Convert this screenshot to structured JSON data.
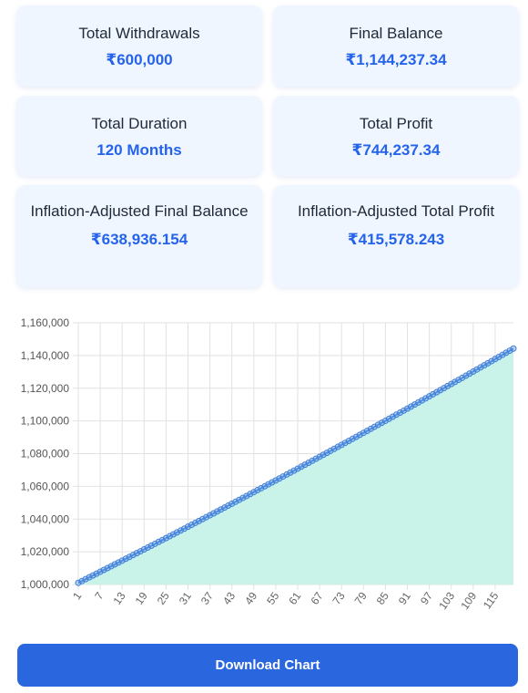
{
  "summary": {
    "total_withdrawals": {
      "label": "Total Withdrawals",
      "value": "₹600,000"
    },
    "final_balance": {
      "label": "Final Balance",
      "value": "₹1,144,237.34"
    },
    "total_duration": {
      "label": "Total Duration",
      "value": "120 Months"
    },
    "total_profit": {
      "label": "Total Profit",
      "value": "₹744,237.34"
    },
    "inflation_final_balance": {
      "label": "Inflation-Adjusted Final Balance",
      "value": "₹638,936.154"
    },
    "inflation_total_profit": {
      "label": "Inflation-Adjusted Total Profit",
      "value": "₹415,578.243"
    }
  },
  "chart_data": {
    "type": "area",
    "x_start": 1,
    "x_end": 120,
    "x_tick_labels": [
      "1",
      "7",
      "13",
      "19",
      "25",
      "31",
      "37",
      "43",
      "49",
      "55",
      "61",
      "67",
      "73",
      "79",
      "85",
      "91",
      "97",
      "103",
      "109",
      "115"
    ],
    "y_tick_labels": [
      "1,000,000",
      "1,020,000",
      "1,040,000",
      "1,060,000",
      "1,080,000",
      "1,100,000",
      "1,120,000",
      "1,140,000",
      "1,160,000"
    ],
    "ylim": [
      1000000,
      1160000
    ],
    "y_start": 1001000,
    "y_end": 1144237.34,
    "grid": true,
    "colors": {
      "line": "#3b7dd8",
      "fill": "#c9f3e9",
      "grid": "#e2e2e2"
    }
  },
  "actions": {
    "download_label": "Download Chart"
  }
}
